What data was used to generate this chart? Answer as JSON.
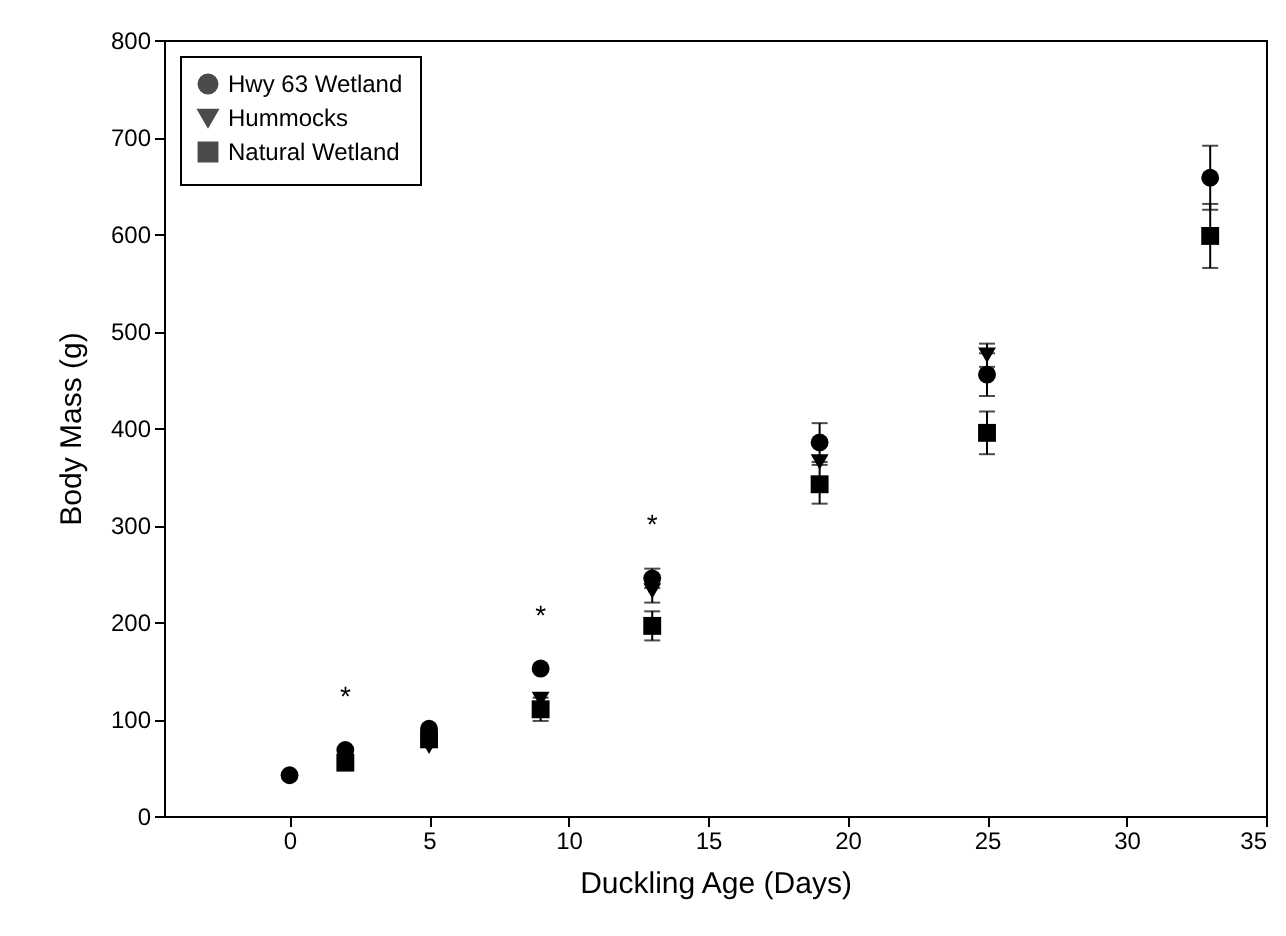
{
  "chart_data": {
    "type": "scatter",
    "xlabel": "Duckling Age (Days)",
    "ylabel": "Body Mass (g)",
    "x": [
      0,
      2,
      5,
      9,
      13,
      19,
      25,
      33
    ],
    "series": [
      {
        "name": "Hwy 63 Wetland",
        "color": "#000000",
        "marker": "circle",
        "values": [
          42,
          68,
          90,
          152,
          245,
          385,
          455,
          658
        ],
        "errors": [
          null,
          null,
          null,
          null,
          10,
          20,
          22,
          33
        ]
      },
      {
        "name": "Hummocks",
        "color": "#000000",
        "marker": "triangle",
        "values": [
          null,
          null,
          72,
          120,
          232,
          365,
          475,
          null
        ],
        "errors": [
          null,
          null,
          null,
          null,
          12,
          null,
          12,
          null
        ]
      },
      {
        "name": "Natural Wetland",
        "color": "#000000",
        "marker": "square",
        "values": [
          null,
          55,
          79,
          110,
          196,
          342,
          395,
          598
        ],
        "errors": [
          null,
          null,
          null,
          12,
          15,
          20,
          22,
          33
        ]
      }
    ],
    "annotations": [
      {
        "text": "*",
        "x": 2,
        "y": 68
      },
      {
        "text": "*",
        "x": 9,
        "y": 152
      },
      {
        "text": "*",
        "x": 13,
        "y": 245
      }
    ],
    "xlim": [
      -4.5,
      35
    ],
    "xticks": [
      0,
      5,
      10,
      15,
      20,
      25,
      30,
      35
    ],
    "ylim": [
      0,
      800
    ],
    "yticks": [
      0,
      100,
      200,
      300,
      400,
      500,
      600,
      700,
      800
    ],
    "legend": "top left",
    "grid": false
  }
}
